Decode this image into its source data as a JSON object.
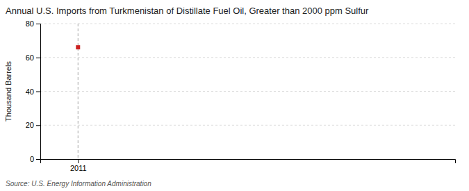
{
  "chart_data": {
    "type": "scatter",
    "title": "Annual U.S. Imports from Turkmenistan of Distillate Fuel Oil, Greater than 2000 ppm Sulfur",
    "ylabel": "Thousand Barrels",
    "source": "Source: U.S. Energy Information Administration",
    "x": [
      2011
    ],
    "values": [
      66
    ],
    "color": "#cc2222",
    "marker": "square",
    "xlim": [
      2010.5,
      2016
    ],
    "xticks": [
      2011
    ],
    "ylim": [
      0,
      80
    ],
    "yticks": [
      0,
      20,
      40,
      60,
      80
    ],
    "grid": true
  }
}
